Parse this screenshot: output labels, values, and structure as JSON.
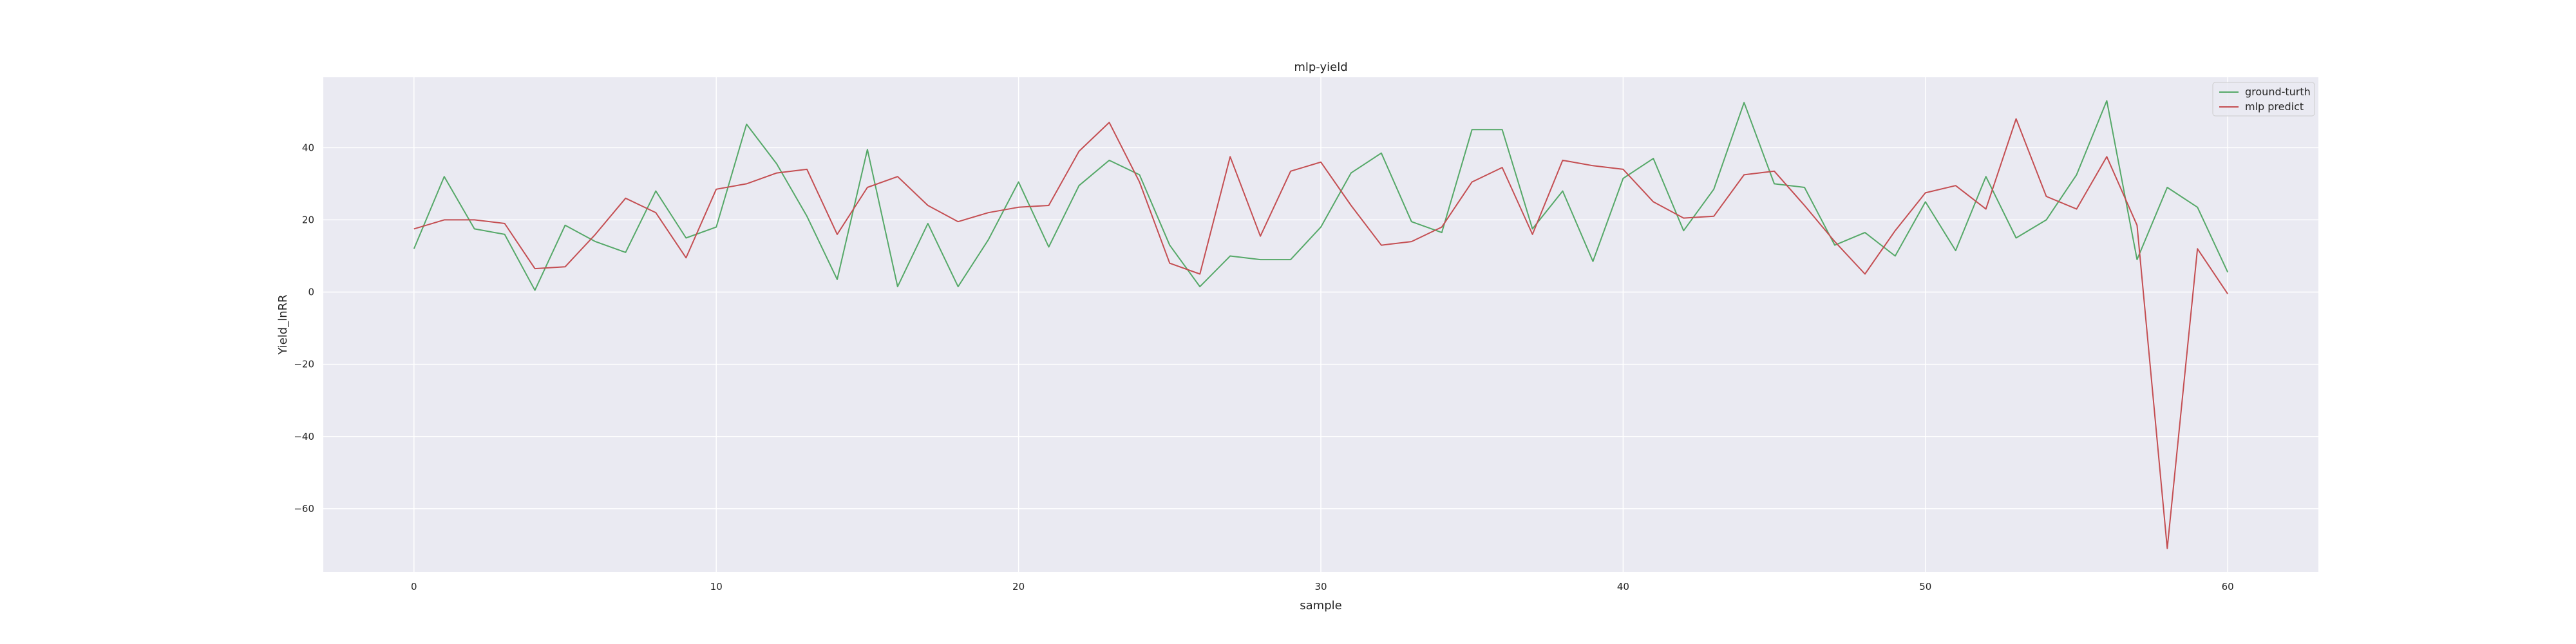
{
  "chart_data": {
    "type": "line",
    "title": "mlp-yield",
    "xlabel": "sample",
    "ylabel": "Yield_lnRR",
    "xlim": [
      -3,
      63
    ],
    "ylim": [
      -77.5,
      59.5
    ],
    "xticks": [
      0,
      10,
      20,
      30,
      40,
      50,
      60
    ],
    "yticks": [
      -60,
      -40,
      -20,
      0,
      20,
      40
    ],
    "ytick_labels": [
      "−60",
      "−40",
      "−20",
      "0",
      "20",
      "40"
    ],
    "grid": true,
    "legend_position": "top-right",
    "series": [
      {
        "name": "ground-turth",
        "color": "#55a868",
        "x": [
          0,
          1,
          2,
          3,
          4,
          5,
          6,
          7,
          8,
          9,
          10,
          11,
          12,
          13,
          14,
          15,
          16,
          17,
          18,
          19,
          20,
          21,
          22,
          23,
          24,
          25,
          26,
          27,
          28,
          29,
          30,
          31,
          32,
          33,
          34,
          35,
          36,
          37,
          38,
          39,
          40,
          41,
          42,
          43,
          44,
          45,
          46,
          47,
          48,
          49,
          50,
          51,
          52,
          53,
          54,
          55,
          56,
          57,
          58,
          59,
          60
        ],
        "values": [
          12,
          32,
          17.5,
          16,
          0.5,
          18.5,
          14,
          11,
          28,
          15,
          18,
          46.5,
          35.5,
          21,
          3.5,
          39.5,
          1.5,
          19,
          1.5,
          14.5,
          30.5,
          12.5,
          29.5,
          36.5,
          32.5,
          13,
          1.5,
          10,
          9,
          9,
          18,
          33,
          38.5,
          19.5,
          16.5,
          45,
          45,
          17.5,
          28,
          8.5,
          31.5,
          37,
          17,
          28.5,
          52.5,
          30,
          29,
          13,
          16.5,
          10,
          25,
          11.5,
          32,
          15,
          20,
          32.5,
          53,
          9,
          29,
          23.5,
          5.5
        ]
      },
      {
        "name": "mlp predict",
        "color": "#c44e52",
        "x": [
          0,
          1,
          2,
          3,
          4,
          5,
          6,
          7,
          8,
          9,
          10,
          11,
          12,
          13,
          14,
          15,
          16,
          17,
          18,
          19,
          20,
          21,
          22,
          23,
          24,
          25,
          26,
          27,
          28,
          29,
          30,
          31,
          32,
          33,
          34,
          35,
          36,
          37,
          38,
          39,
          40,
          41,
          42,
          43,
          44,
          45,
          46,
          47,
          48,
          49,
          50,
          51,
          52,
          53,
          54,
          55,
          56,
          57,
          58,
          59,
          60
        ],
        "values": [
          17.5,
          20,
          20,
          19,
          6.5,
          7,
          16,
          26,
          22,
          9.5,
          28.5,
          30,
          33,
          34,
          16,
          29,
          32,
          24,
          19.5,
          22,
          23.5,
          24,
          39,
          47,
          30.5,
          8,
          5,
          37.5,
          15.5,
          33.5,
          36,
          24,
          13,
          14,
          18,
          30.5,
          34.5,
          16,
          36.5,
          35,
          34,
          25,
          20.5,
          21,
          32.5,
          33.5,
          24,
          14,
          5,
          17,
          27.5,
          29.5,
          23,
          48,
          26.5,
          23,
          37.5,
          18.5,
          -71,
          12,
          -0.5
        ]
      }
    ]
  }
}
